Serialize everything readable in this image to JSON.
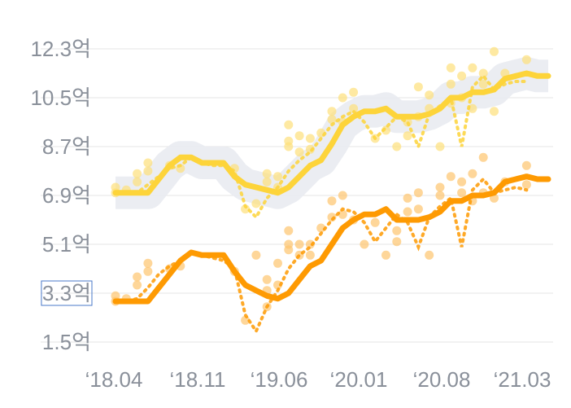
{
  "chart_data": {
    "type": "line",
    "title": "",
    "xlabel": "",
    "ylabel": "",
    "x_ticks": [
      "‘18.04",
      "‘18.11",
      "‘19.06",
      "‘20.01",
      "‘20.08",
      "‘21.03"
    ],
    "y_ticks": [
      "12.3억",
      "10.5억",
      "8.7억",
      "6.9억",
      "5.1억",
      "3.3억",
      "1.5억"
    ],
    "y_tick_values": [
      12.3,
      10.5,
      8.7,
      6.9,
      5.1,
      3.3,
      1.5
    ],
    "ylim": [
      1.2,
      13.2
    ],
    "x_range": [
      "2018-04",
      "2021-08"
    ],
    "highlighted_y_tick": "3.3억",
    "grid": "horizontal",
    "series": [
      {
        "role": "trend",
        "color": "#fdd43a",
        "band_color": "#e9ebf1",
        "points": [
          [
            "2018-04",
            7.0
          ],
          [
            "2018-05",
            7.0
          ],
          [
            "2018-06",
            7.0
          ],
          [
            "2018-07",
            7.0
          ],
          [
            "2018-08",
            7.5
          ],
          [
            "2018-09",
            8.0
          ],
          [
            "2018-10",
            8.3
          ],
          [
            "2018-11",
            8.3
          ],
          [
            "2018-12",
            8.1
          ],
          [
            "2019-01",
            8.1
          ],
          [
            "2019-02",
            8.1
          ],
          [
            "2019-03",
            7.6
          ],
          [
            "2019-04",
            7.3
          ],
          [
            "2019-05",
            7.2
          ],
          [
            "2019-06",
            7.1
          ],
          [
            "2019-07",
            7.0
          ],
          [
            "2019-08",
            7.2
          ],
          [
            "2019-09",
            7.6
          ],
          [
            "2019-10",
            8.0
          ],
          [
            "2019-11",
            8.2
          ],
          [
            "2019-12",
            8.8
          ],
          [
            "2020-01",
            9.5
          ],
          [
            "2020-02",
            9.8
          ],
          [
            "2020-03",
            10.0
          ],
          [
            "2020-04",
            10.0
          ],
          [
            "2020-05",
            10.1
          ],
          [
            "2020-06",
            9.8
          ],
          [
            "2020-07",
            9.8
          ],
          [
            "2020-08",
            9.8
          ],
          [
            "2020-09",
            9.9
          ],
          [
            "2020-10",
            10.1
          ],
          [
            "2020-11",
            10.5
          ],
          [
            "2020-12",
            10.5
          ],
          [
            "2021-01",
            10.7
          ],
          [
            "2021-02",
            10.7
          ],
          [
            "2021-03",
            10.8
          ],
          [
            "2021-04",
            11.2
          ],
          [
            "2021-05",
            11.3
          ],
          [
            "2021-06",
            11.4
          ],
          [
            "2021-07",
            11.3
          ],
          [
            "2021-08",
            11.3
          ]
        ]
      },
      {
        "role": "monthly",
        "color": "#fdd43a",
        "style": "dotted",
        "points": [
          [
            "2018-04",
            7.0
          ],
          [
            "2018-05",
            7.0
          ],
          [
            "2018-06",
            7.0
          ],
          [
            "2018-07",
            7.3
          ],
          [
            "2018-08",
            7.6
          ],
          [
            "2018-09",
            7.9
          ],
          [
            "2018-10",
            8.0
          ],
          [
            "2018-11",
            8.3
          ],
          [
            "2018-12",
            8.1
          ],
          [
            "2019-01",
            8.0
          ],
          [
            "2019-02",
            8.0
          ],
          [
            "2019-03",
            7.8
          ],
          [
            "2019-04",
            6.5
          ],
          [
            "2019-05",
            6.1
          ],
          [
            "2019-06",
            6.8
          ],
          [
            "2019-07",
            7.2
          ],
          [
            "2019-08",
            7.8
          ],
          [
            "2019-09",
            8.2
          ],
          [
            "2019-10",
            8.5
          ],
          [
            "2019-11",
            9.0
          ],
          [
            "2019-12",
            9.5
          ],
          [
            "2020-01",
            9.8
          ],
          [
            "2020-02",
            10.0
          ],
          [
            "2020-03",
            9.6
          ],
          [
            "2020-04",
            9.0
          ],
          [
            "2020-05",
            9.4
          ],
          [
            "2020-06",
            9.8
          ],
          [
            "2020-07",
            9.6
          ],
          [
            "2020-08",
            8.7
          ],
          [
            "2020-09",
            9.9
          ],
          [
            "2020-10",
            10.2
          ],
          [
            "2020-11",
            10.5
          ],
          [
            "2020-12",
            8.7
          ],
          [
            "2021-01",
            10.9
          ],
          [
            "2021-02",
            11.3
          ],
          [
            "2021-03",
            10.8
          ],
          [
            "2021-04",
            11.0
          ],
          [
            "2021-05",
            11.1
          ],
          [
            "2021-06",
            11.1
          ]
        ]
      },
      {
        "role": "trades",
        "color": "#fde07a",
        "style": "dots",
        "points": [
          [
            "2018-04",
            7.2
          ],
          [
            "2018-04",
            7.0
          ],
          [
            "2018-05",
            7.1
          ],
          [
            "2018-06",
            7.4
          ],
          [
            "2018-06",
            7.7
          ],
          [
            "2018-07",
            7.8
          ],
          [
            "2018-07",
            8.1
          ],
          [
            "2018-09",
            8.0
          ],
          [
            "2018-10",
            7.9
          ],
          [
            "2019-03",
            7.9
          ],
          [
            "2019-04",
            6.4
          ],
          [
            "2019-05",
            6.6
          ],
          [
            "2019-06",
            7.7
          ],
          [
            "2019-06",
            7.4
          ],
          [
            "2019-07",
            7.6
          ],
          [
            "2019-07",
            7.2
          ],
          [
            "2019-08",
            8.9
          ],
          [
            "2019-08",
            9.5
          ],
          [
            "2019-08",
            8.7
          ],
          [
            "2019-09",
            8.5
          ],
          [
            "2019-09",
            9.1
          ],
          [
            "2019-10",
            9.0
          ],
          [
            "2019-10",
            8.6
          ],
          [
            "2019-11",
            9.2
          ],
          [
            "2019-12",
            9.7
          ],
          [
            "2019-12",
            10.0
          ],
          [
            "2020-01",
            10.5
          ],
          [
            "2020-01",
            9.6
          ],
          [
            "2020-02",
            10.7
          ],
          [
            "2020-02",
            10.1
          ],
          [
            "2020-04",
            9.0
          ],
          [
            "2020-05",
            9.3
          ],
          [
            "2020-06",
            8.7
          ],
          [
            "2020-07",
            9.6
          ],
          [
            "2020-07",
            9.1
          ],
          [
            "2020-08",
            9.8
          ],
          [
            "2020-08",
            10.9
          ],
          [
            "2020-09",
            10.1
          ],
          [
            "2020-09",
            10.6
          ],
          [
            "2020-10",
            8.7
          ],
          [
            "2020-11",
            11.0
          ],
          [
            "2020-11",
            11.6
          ],
          [
            "2020-11",
            10.3
          ],
          [
            "2020-12",
            11.3
          ],
          [
            "2020-12",
            10.5
          ],
          [
            "2021-01",
            11.6
          ],
          [
            "2021-01",
            10.1
          ],
          [
            "2021-02",
            11.4
          ],
          [
            "2021-02",
            11.0
          ],
          [
            "2021-03",
            12.2
          ],
          [
            "2021-03",
            10.0
          ],
          [
            "2021-04",
            11.4
          ],
          [
            "2021-06",
            11.9
          ]
        ]
      },
      {
        "role": "trend",
        "color": "#fe9a02",
        "points": [
          [
            "2018-04",
            3.0
          ],
          [
            "2018-05",
            3.0
          ],
          [
            "2018-06",
            3.0
          ],
          [
            "2018-07",
            3.0
          ],
          [
            "2018-08",
            3.5
          ],
          [
            "2018-09",
            4.0
          ],
          [
            "2018-10",
            4.5
          ],
          [
            "2018-11",
            4.8
          ],
          [
            "2018-12",
            4.7
          ],
          [
            "2019-01",
            4.7
          ],
          [
            "2019-02",
            4.7
          ],
          [
            "2019-03",
            4.1
          ],
          [
            "2019-04",
            3.6
          ],
          [
            "2019-05",
            3.4
          ],
          [
            "2019-06",
            3.2
          ],
          [
            "2019-07",
            3.1
          ],
          [
            "2019-08",
            3.3
          ],
          [
            "2019-09",
            3.8
          ],
          [
            "2019-10",
            4.3
          ],
          [
            "2019-11",
            4.5
          ],
          [
            "2019-12",
            5.1
          ],
          [
            "2020-01",
            5.7
          ],
          [
            "2020-02",
            6.0
          ],
          [
            "2020-03",
            6.2
          ],
          [
            "2020-04",
            6.2
          ],
          [
            "2020-05",
            6.4
          ],
          [
            "2020-06",
            6.0
          ],
          [
            "2020-07",
            6.0
          ],
          [
            "2020-08",
            6.0
          ],
          [
            "2020-09",
            6.1
          ],
          [
            "2020-10",
            6.3
          ],
          [
            "2020-11",
            6.7
          ],
          [
            "2020-12",
            6.7
          ],
          [
            "2021-01",
            6.9
          ],
          [
            "2021-02",
            6.9
          ],
          [
            "2021-03",
            7.0
          ],
          [
            "2021-04",
            7.4
          ],
          [
            "2021-05",
            7.5
          ],
          [
            "2021-06",
            7.6
          ],
          [
            "2021-07",
            7.5
          ],
          [
            "2021-08",
            7.5
          ]
        ]
      },
      {
        "role": "monthly",
        "color": "#fe9a02",
        "style": "dotted",
        "points": [
          [
            "2018-04",
            3.0
          ],
          [
            "2018-05",
            3.0
          ],
          [
            "2018-06",
            3.1
          ],
          [
            "2018-07",
            3.5
          ],
          [
            "2018-08",
            4.0
          ],
          [
            "2018-09",
            4.3
          ],
          [
            "2018-10",
            4.5
          ],
          [
            "2018-11",
            4.8
          ],
          [
            "2018-12",
            4.7
          ],
          [
            "2019-01",
            4.6
          ],
          [
            "2019-02",
            4.5
          ],
          [
            "2019-03",
            4.2
          ],
          [
            "2019-04",
            2.5
          ],
          [
            "2019-05",
            1.9
          ],
          [
            "2019-06",
            2.8
          ],
          [
            "2019-07",
            3.4
          ],
          [
            "2019-08",
            4.2
          ],
          [
            "2019-09",
            4.7
          ],
          [
            "2019-10",
            5.0
          ],
          [
            "2019-11",
            5.5
          ],
          [
            "2019-12",
            6.0
          ],
          [
            "2020-01",
            6.4
          ],
          [
            "2020-02",
            6.3
          ],
          [
            "2020-03",
            5.9
          ],
          [
            "2020-04",
            5.2
          ],
          [
            "2020-05",
            5.7
          ],
          [
            "2020-06",
            6.2
          ],
          [
            "2020-07",
            5.9
          ],
          [
            "2020-08",
            5.0
          ],
          [
            "2020-09",
            6.1
          ],
          [
            "2020-10",
            6.5
          ],
          [
            "2020-11",
            6.8
          ],
          [
            "2020-12",
            5.0
          ],
          [
            "2021-01",
            7.1
          ],
          [
            "2021-02",
            7.5
          ],
          [
            "2021-03",
            7.0
          ],
          [
            "2021-04",
            7.1
          ],
          [
            "2021-05",
            7.2
          ],
          [
            "2021-06",
            7.1
          ]
        ]
      },
      {
        "role": "trades",
        "color": "#fdc46e",
        "style": "dots",
        "points": [
          [
            "2018-04",
            3.2
          ],
          [
            "2018-04",
            3.0
          ],
          [
            "2018-05",
            3.1
          ],
          [
            "2018-06",
            3.6
          ],
          [
            "2018-06",
            3.9
          ],
          [
            "2018-07",
            4.1
          ],
          [
            "2018-07",
            4.4
          ],
          [
            "2018-09",
            4.2
          ],
          [
            "2018-10",
            4.3
          ],
          [
            "2019-03",
            4.1
          ],
          [
            "2019-04",
            2.3
          ],
          [
            "2019-05",
            4.7
          ],
          [
            "2019-06",
            3.8
          ],
          [
            "2019-06",
            3.4
          ],
          [
            "2019-06",
            2.8
          ],
          [
            "2019-07",
            3.6
          ],
          [
            "2019-07",
            4.4
          ],
          [
            "2019-08",
            5.1
          ],
          [
            "2019-08",
            5.6
          ],
          [
            "2019-08",
            4.9
          ],
          [
            "2019-09",
            4.7
          ],
          [
            "2019-09",
            5.1
          ],
          [
            "2019-10",
            5.1
          ],
          [
            "2019-10",
            4.7
          ],
          [
            "2019-11",
            5.7
          ],
          [
            "2019-12",
            6.1
          ],
          [
            "2019-12",
            6.7
          ],
          [
            "2020-01",
            6.9
          ],
          [
            "2020-01",
            6.2
          ],
          [
            "2020-02",
            6.0
          ],
          [
            "2020-03",
            5.1
          ],
          [
            "2020-04",
            5.9
          ],
          [
            "2020-05",
            4.7
          ],
          [
            "2020-06",
            5.6
          ],
          [
            "2020-06",
            5.2
          ],
          [
            "2020-07",
            6.3
          ],
          [
            "2020-07",
            6.8
          ],
          [
            "2020-08",
            6.4
          ],
          [
            "2020-08",
            7.0
          ],
          [
            "2020-09",
            4.7
          ],
          [
            "2020-10",
            6.9
          ],
          [
            "2020-10",
            7.2
          ],
          [
            "2020-11",
            7.6
          ],
          [
            "2020-12",
            7.4
          ],
          [
            "2020-12",
            7.0
          ],
          [
            "2021-01",
            7.7
          ],
          [
            "2021-01",
            6.7
          ],
          [
            "2021-02",
            8.3
          ],
          [
            "2021-02",
            7.0
          ],
          [
            "2021-03",
            6.8
          ],
          [
            "2021-04",
            7.4
          ],
          [
            "2021-06",
            7.3
          ],
          [
            "2021-06",
            8.0
          ]
        ]
      }
    ]
  }
}
